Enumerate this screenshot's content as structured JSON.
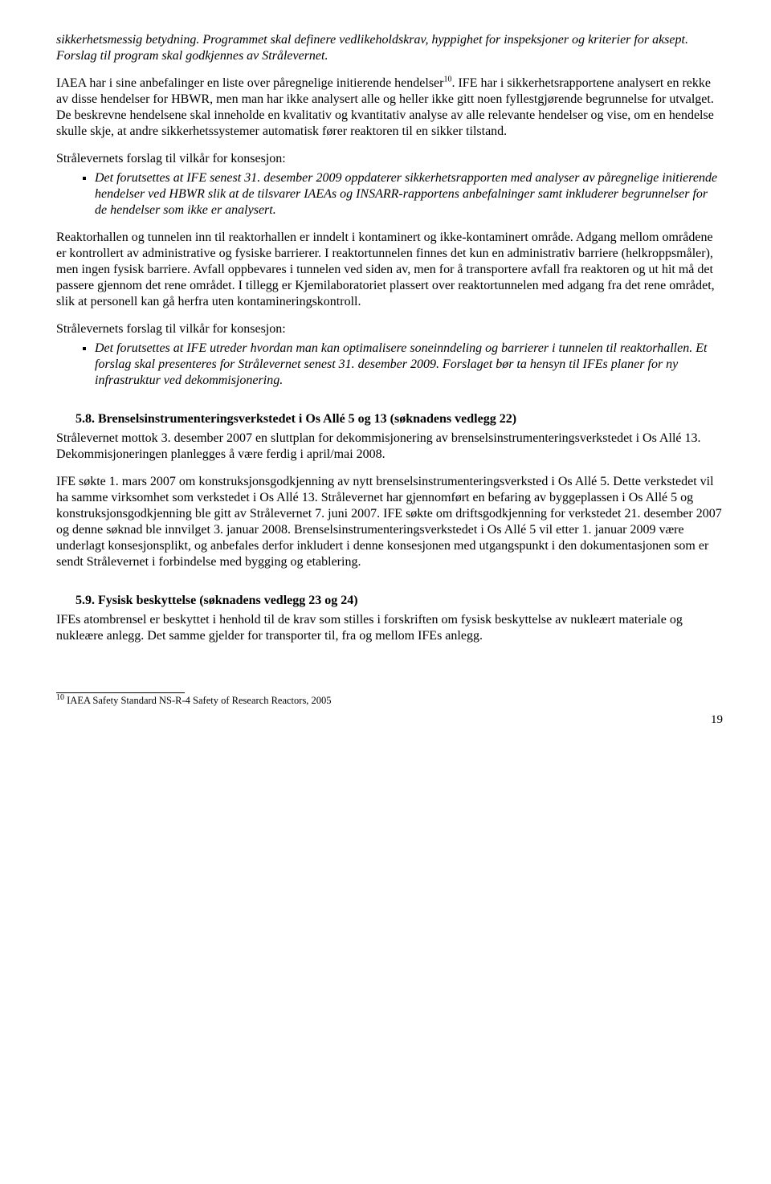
{
  "para1": "sikkerhetsmessig betydning. Programmet skal definere vedlikeholdskrav, hyppighet for inspeksjoner og kriterier for aksept. Forslag til program skal godkjennes av Strålevernet.",
  "para2_pre": "IAEA har i sine anbefalinger en liste over påregnelige initierende hendelser",
  "para2_sup": "10",
  "para2_post": ". IFE har i sikkerhetsrapportene analysert en rekke av disse hendelser for HBWR, men man har ikke analysert alle og heller ikke gitt noen fyllestgjørende begrunnelse for utvalget. De beskrevne hendelsene skal inneholde en kvalitativ og kvantitativ analyse av alle relevante hendelser og vise, om en hendelse skulle skje, at andre sikkerhetssystemer automatisk fører reaktoren til en sikker tilstand.",
  "lead1": "Strålevernets forslag til vilkår for konsesjon:",
  "bullet1": "Det forutsettes at IFE senest 31. desember 2009 oppdaterer sikkerhetsrapporten med analyser av påregnelige initierende hendelser ved HBWR slik at de tilsvarer IAEAs og INSARR-rapportens anbefalninger samt inkluderer begrunnelser for de hendelser som ikke er analysert.",
  "para3": "Reaktorhallen og tunnelen inn til reaktorhallen er inndelt i kontaminert og ikke-kontaminert område. Adgang mellom områdene er kontrollert av administrative og fysiske barrierer. I reaktortunnelen finnes det kun en administrativ barriere (helkroppsmåler), men ingen fysisk barriere. Avfall oppbevares i tunnelen ved siden av, men for å transportere avfall fra reaktoren og ut hit må det passere gjennom det rene området. I tillegg er Kjemilaboratoriet plassert over reaktortunnelen med adgang fra det rene området, slik at personell kan gå herfra uten kontamineringskontroll.",
  "lead2": "Strålevernets forslag til vilkår for konsesjon:",
  "bullet2": "Det forutsettes at IFE utreder hvordan man kan optimalisere soneinndeling og barrierer i tunnelen til reaktorhallen. Et forslag skal presenteres for Strålevernet senest 31. desember 2009. Forslaget bør ta hensyn til IFEs planer for ny infrastruktur ved dekommisjonering.",
  "h58": "5.8. Brenselsinstrumenteringsverkstedet i Os Allé 5 og 13 (søknadens vedlegg 22)",
  "para4": "Strålevernet mottok 3. desember 2007 en sluttplan for dekommisjonering av brenselsinstrumenteringsverkstedet i Os Allé 13. Dekommisjoneringen planlegges å være ferdig i april/mai 2008.",
  "para5": "IFE søkte 1. mars 2007 om konstruksjonsgodkjenning av nytt brenselsinstrumenteringsverksted i Os Allé 5. Dette verkstedet vil ha samme virksomhet som verkstedet i Os Allé 13. Strålevernet har gjennomført en befaring av byggeplassen i Os Allé 5 og konstruksjonsgodkjenning ble gitt av Strålevernet 7. juni 2007. IFE søkte om driftsgodkjenning for verkstedet 21. desember 2007 og denne søknad ble innvilget 3. januar 2008. Brenselsinstrumenteringsverkstedet i Os Allé 5 vil etter 1. januar 2009 være underlagt konsesjonsplikt, og anbefales derfor inkludert i denne konsesjonen med utgangspunkt i den dokumentasjonen som er sendt Strålevernet i forbindelse med bygging og etablering.",
  "h59": "5.9. Fysisk beskyttelse (søknadens vedlegg 23 og 24)",
  "para6": "IFEs atombrensel er beskyttet i henhold til de krav som stilles i forskriften om fysisk beskyttelse av nukleært materiale og nukleære anlegg. Det samme gjelder for transporter til, fra og mellom IFEs anlegg.",
  "footnote_sup": "10",
  "footnote_text": " IAEA Safety Standard NS-R-4 Safety of Research Reactors, 2005",
  "page_number": "19"
}
